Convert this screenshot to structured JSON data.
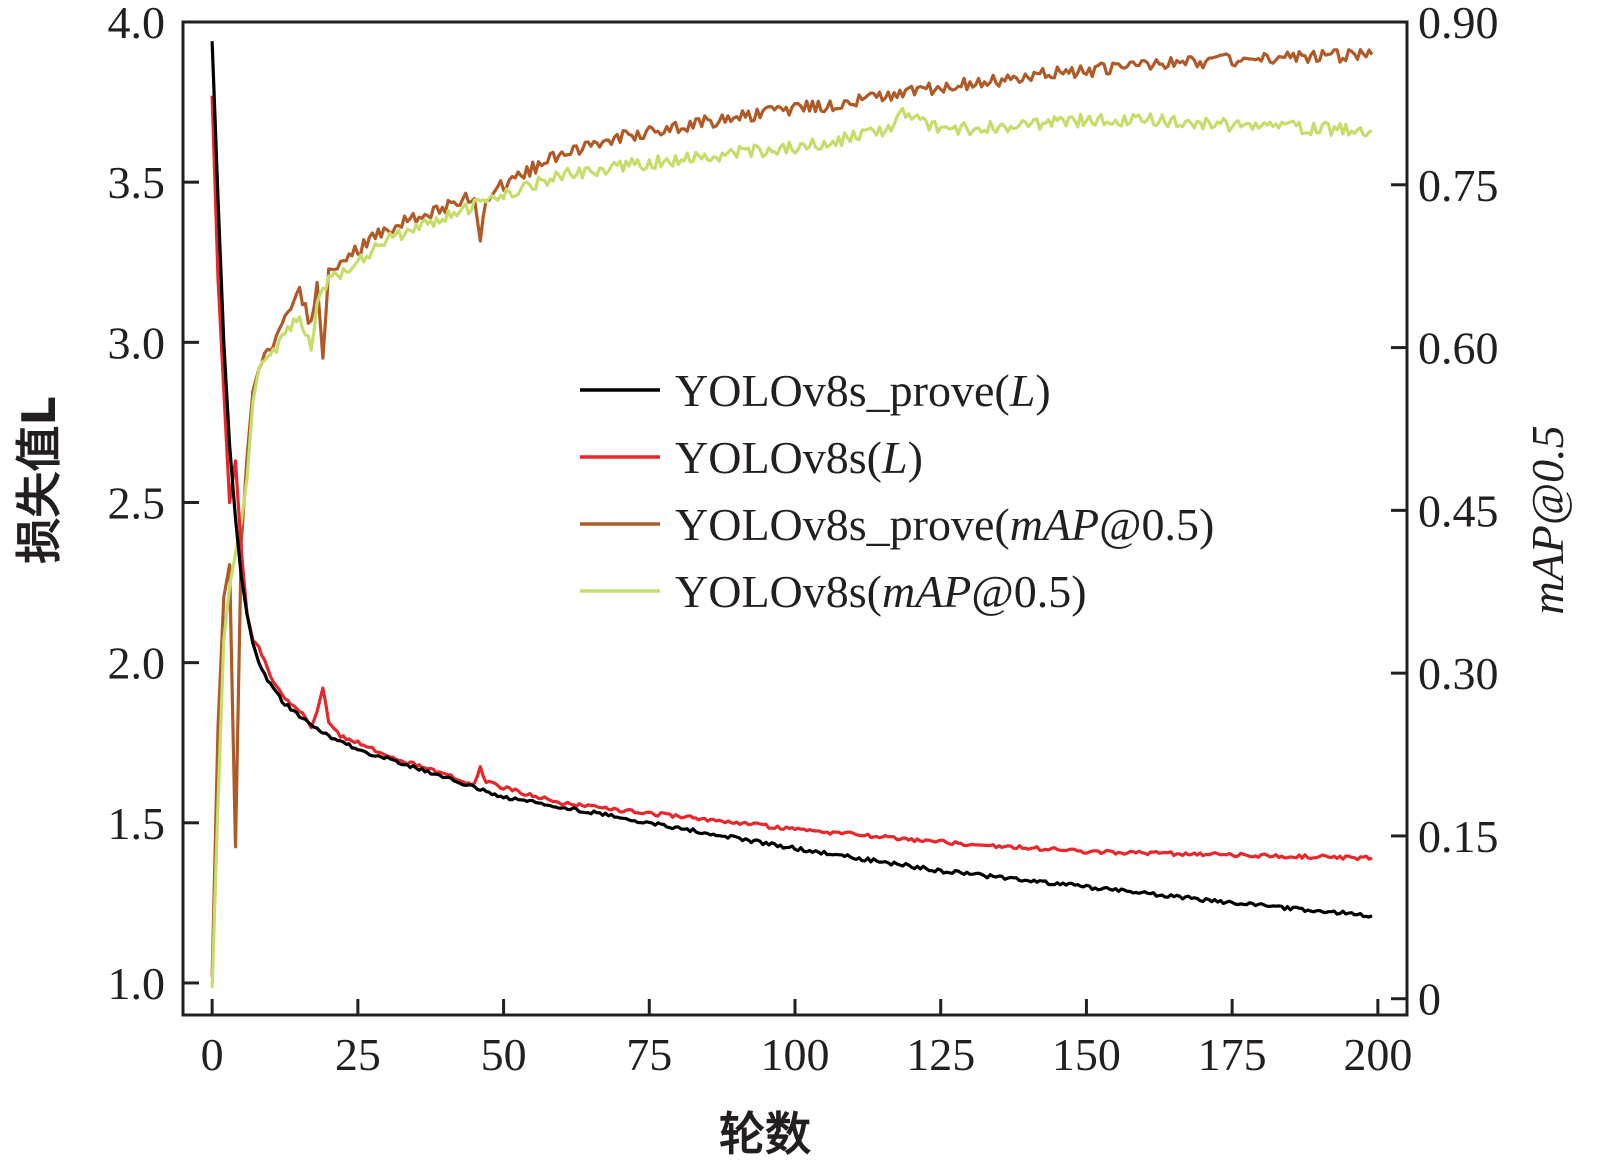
{
  "chart_data": {
    "type": "line",
    "xlabel": "轮数",
    "ylabel_left": "损失值L",
    "ylabel_right": "mAP@0.5",
    "xlim": [
      -5,
      205
    ],
    "ylim_left": [
      0.9,
      4.0
    ],
    "ylim_right": [
      -0.015,
      0.9
    ],
    "x_ticks": [
      "0",
      "25",
      "50",
      "75",
      "100",
      "125",
      "150",
      "175",
      "200"
    ],
    "y_left_ticks": [
      "1.0",
      "1.5",
      "2.0",
      "2.5",
      "3.0",
      "3.5",
      "4.0"
    ],
    "y_right_ticks": [
      "0",
      "0.15",
      "0.30",
      "0.45",
      "0.60",
      "0.75",
      "0.90"
    ],
    "legend_position": "center",
    "legend": [
      "YOLOv8s_prove(L)",
      "YOLOv8s(L)",
      "YOLOv8s_prove(mAP@0.5)",
      "YOLOv8s(mAP@0.5)"
    ],
    "series": [
      {
        "name": "YOLOv8s_prove(L)",
        "axis": "left",
        "color": "#000000",
        "x": [
          0,
          1,
          2,
          3,
          4,
          5,
          6,
          7,
          8,
          10,
          12,
          15,
          20,
          25,
          30,
          40,
          50,
          60,
          75,
          100,
          125,
          150,
          175,
          199
        ],
        "y": [
          3.94,
          3.45,
          3.0,
          2.68,
          2.45,
          2.27,
          2.15,
          2.06,
          2.0,
          1.93,
          1.88,
          1.83,
          1.77,
          1.73,
          1.7,
          1.64,
          1.58,
          1.55,
          1.5,
          1.42,
          1.35,
          1.3,
          1.25,
          1.21
        ]
      },
      {
        "name": "YOLOv8s(L)",
        "axis": "left",
        "color": "#e8262b",
        "x": [
          0,
          1,
          2,
          3,
          4,
          5,
          6,
          7,
          8,
          10,
          12,
          15,
          17,
          18,
          19,
          20,
          22,
          25,
          30,
          35,
          40,
          45,
          46,
          47,
          50,
          60,
          75,
          90,
          100,
          125,
          150,
          175,
          199
        ],
        "y": [
          3.77,
          3.2,
          2.85,
          2.5,
          2.63,
          2.35,
          2.15,
          2.07,
          2.05,
          1.96,
          1.9,
          1.85,
          1.8,
          1.85,
          1.92,
          1.82,
          1.77,
          1.75,
          1.71,
          1.68,
          1.65,
          1.62,
          1.67,
          1.63,
          1.61,
          1.56,
          1.53,
          1.5,
          1.48,
          1.44,
          1.41,
          1.4,
          1.39
        ]
      },
      {
        "name": "YOLOv8s_prove(mAP@0.5)",
        "axis": "right",
        "color": "#b05a28",
        "x": [
          0,
          1,
          2,
          3,
          4,
          5,
          6,
          7,
          8,
          10,
          12,
          15,
          17,
          18,
          19,
          20,
          22,
          25,
          30,
          35,
          40,
          45,
          46,
          47,
          50,
          60,
          75,
          100,
          115,
          125,
          140,
          150,
          160,
          175,
          199
        ],
        "y": [
          0.02,
          0.25,
          0.37,
          0.4,
          0.14,
          0.42,
          0.5,
          0.56,
          0.58,
          0.6,
          0.62,
          0.65,
          0.62,
          0.66,
          0.59,
          0.67,
          0.68,
          0.69,
          0.71,
          0.72,
          0.73,
          0.74,
          0.7,
          0.74,
          0.75,
          0.78,
          0.8,
          0.82,
          0.83,
          0.84,
          0.85,
          0.855,
          0.86,
          0.865,
          0.87
        ]
      },
      {
        "name": "YOLOv8s(mAP@0.5)",
        "axis": "right",
        "color": "#c5dd6a",
        "x": [
          0,
          1,
          2,
          3,
          4,
          5,
          6,
          7,
          8,
          10,
          12,
          15,
          17,
          18,
          20,
          25,
          30,
          35,
          40,
          50,
          60,
          75,
          100,
          117,
          118,
          125,
          140,
          150,
          160,
          175,
          199
        ],
        "y": [
          0.01,
          0.18,
          0.33,
          0.38,
          0.41,
          0.44,
          0.48,
          0.55,
          0.58,
          0.59,
          0.61,
          0.63,
          0.6,
          0.64,
          0.66,
          0.68,
          0.7,
          0.71,
          0.72,
          0.74,
          0.76,
          0.77,
          0.785,
          0.8,
          0.82,
          0.8,
          0.805,
          0.81,
          0.81,
          0.805,
          0.8
        ]
      }
    ]
  }
}
